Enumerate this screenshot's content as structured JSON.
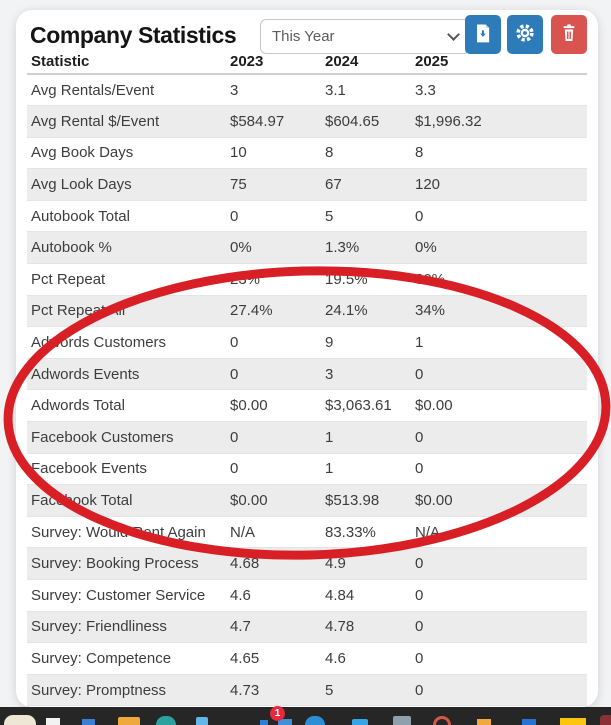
{
  "header": {
    "title": "Company Statistics",
    "period_select": {
      "value": "This Year"
    },
    "buttons": [
      {
        "id": "export",
        "icon": "file-download-icon",
        "color": "#2d7cb9"
      },
      {
        "id": "settings",
        "icon": "gear-icon",
        "color": "#2d7cb9"
      },
      {
        "id": "delete",
        "icon": "trash-icon",
        "color": "#d9534f"
      }
    ]
  },
  "table": {
    "columns": [
      "Statistic",
      "2023",
      "2024",
      "2025"
    ],
    "rows": [
      [
        "Avg Rentals/Event",
        "3",
        "3.1",
        "3.3"
      ],
      [
        "Avg Rental $/Event",
        "$584.97",
        "$604.65",
        "$1,996.32"
      ],
      [
        "Avg Book Days",
        "10",
        "8",
        "8"
      ],
      [
        "Avg Look Days",
        "75",
        "67",
        "120"
      ],
      [
        "Autobook Total",
        "0",
        "5",
        "0"
      ],
      [
        "Autobook %",
        "0%",
        "1.3%",
        "0%"
      ],
      [
        "Pct Repeat",
        "23%",
        "19.5%",
        "30%"
      ],
      [
        "Pct Repeat All",
        "27.4%",
        "24.1%",
        "34%"
      ],
      [
        "Adwords Customers",
        "0",
        "9",
        "1"
      ],
      [
        "Adwords Events",
        "0",
        "3",
        "0"
      ],
      [
        "Adwords Total",
        "$0.00",
        "$3,063.61",
        "$0.00"
      ],
      [
        "Facebook Customers",
        "0",
        "1",
        "0"
      ],
      [
        "Facebook Events",
        "0",
        "1",
        "0"
      ],
      [
        "Facebook Total",
        "$0.00",
        "$513.98",
        "$0.00"
      ],
      [
        "Survey: Would Rent Again",
        "N/A",
        "83.33%",
        "N/A"
      ],
      [
        "Survey: Booking Process",
        "4.68",
        "4.9",
        "0"
      ],
      [
        "Survey: Customer Service",
        "4.6",
        "4.84",
        "0"
      ],
      [
        "Survey: Friendliness",
        "4.7",
        "4.78",
        "0"
      ],
      [
        "Survey: Competence",
        "4.65",
        "4.6",
        "0"
      ],
      [
        "Survey: Promptness",
        "4.73",
        "5",
        "0"
      ]
    ],
    "stripe_color": "#ececec"
  },
  "annotation": {
    "shape": "ellipse",
    "color": "#d81f26"
  },
  "taskbar": {
    "background": "#262626",
    "badge_count": "1",
    "icons": [
      "taskbar-icon-widget",
      "taskbar-icon-document",
      "taskbar-icon-blue-app",
      "taskbar-icon-folder",
      "taskbar-icon-teal-app",
      "taskbar-icon-phone",
      "taskbar-icon-small-blue",
      "taskbar-icon-badged-app",
      "taskbar-icon-round-blue",
      "taskbar-icon-keyboard",
      "taskbar-icon-window",
      "taskbar-icon-orange-ring",
      "taskbar-icon-amber-app",
      "taskbar-icon-blue-square",
      "taskbar-icon-yellow-app",
      "taskbar-icon-maroon-app"
    ]
  }
}
